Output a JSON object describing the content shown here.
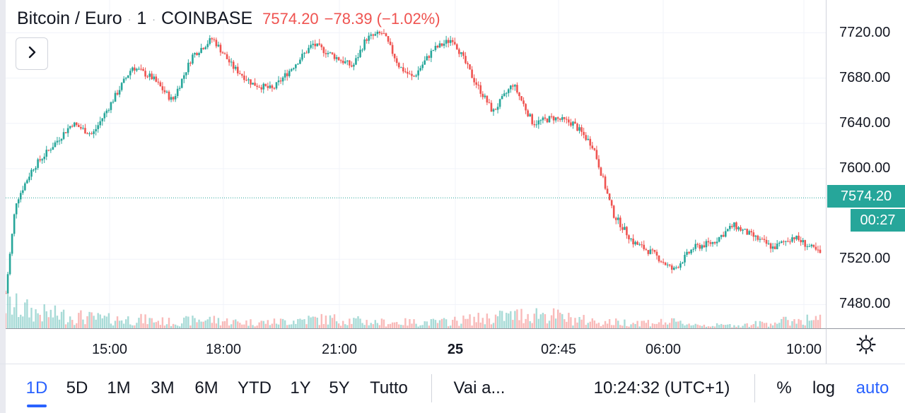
{
  "legend": {
    "symbol": "Bitcoin / Euro",
    "interval": "1",
    "exchange": "COINBASE",
    "dot": "·",
    "last": "7574.20",
    "change": "−78.39 (−1.02%)"
  },
  "price_labels": {
    "last_price": "7574.20",
    "countdown": "00:27"
  },
  "chart_data": {
    "type": "candlestick",
    "y_ticks": [
      "7720.00",
      "7680.00",
      "7640.00",
      "7600.00",
      "7520.00",
      "7480.00"
    ],
    "y_tick_values": [
      7720,
      7680,
      7640,
      7600,
      7520,
      7480
    ],
    "ylim": [
      7459,
      7749
    ],
    "x_tick_labels": [
      "15:00",
      "18:00",
      "21:00",
      "25",
      "02:45",
      "06:00",
      "10:00"
    ],
    "last_price": 7574.2,
    "price_path": {
      "time_hours": [
        0,
        0.3,
        0.8,
        1.4,
        2.0,
        2.6,
        3.2,
        3.8,
        4.4,
        5.0,
        5.6,
        6.2,
        6.8,
        7.4,
        8.0,
        8.6,
        9.2,
        9.8,
        10.4,
        10.8,
        11.3,
        11.8,
        12.2,
        12.8,
        13.4,
        14.0,
        14.6,
        15.2,
        15.8,
        16.4,
        17.0,
        17.6,
        18.2,
        18.8,
        19.4,
        20.0,
        20.6,
        21.2,
        21.8,
        22.4,
        23.0,
        23.6,
        24.4
      ],
      "price": [
        7490,
        7570,
        7600,
        7620,
        7640,
        7630,
        7660,
        7690,
        7680,
        7660,
        7700,
        7715,
        7690,
        7675,
        7670,
        7690,
        7710,
        7700,
        7690,
        7715,
        7720,
        7690,
        7680,
        7705,
        7715,
        7680,
        7650,
        7675,
        7640,
        7645,
        7640,
        7620,
        7560,
        7535,
        7525,
        7510,
        7530,
        7535,
        7550,
        7540,
        7530,
        7540,
        7525
      ]
    },
    "volume_path": {
      "time_hours": [
        0,
        1,
        2,
        3,
        4,
        5,
        6,
        7,
        8,
        9,
        10,
        11,
        12,
        13,
        14,
        15,
        16,
        17,
        18,
        19,
        20,
        21,
        22,
        23,
        24
      ],
      "relative_volume": [
        0.8,
        0.5,
        0.4,
        0.3,
        0.3,
        0.2,
        0.3,
        0.2,
        0.2,
        0.3,
        0.3,
        0.2,
        0.2,
        0.2,
        0.3,
        0.4,
        0.5,
        0.3,
        0.2,
        0.2,
        0.2,
        0.1,
        0.1,
        0.2,
        0.3
      ]
    }
  },
  "ranges": [
    "1D",
    "5D",
    "1M",
    "3M",
    "6M",
    "YTD",
    "1Y",
    "5Y",
    "Tutto"
  ],
  "active_range": "1D",
  "goto_label": "Vai a...",
  "clock": "10:24:32 (UTC+1)",
  "percent_label": "%",
  "log_label": "log",
  "auto_label": "auto",
  "colors": {
    "up": "#26a69a",
    "down": "#ef5350",
    "accent": "#2962ff",
    "text": "#131722",
    "grid": "#f0f3fa"
  },
  "icons": {
    "expand": "chevron-right-icon",
    "settings": "gear-icon"
  }
}
